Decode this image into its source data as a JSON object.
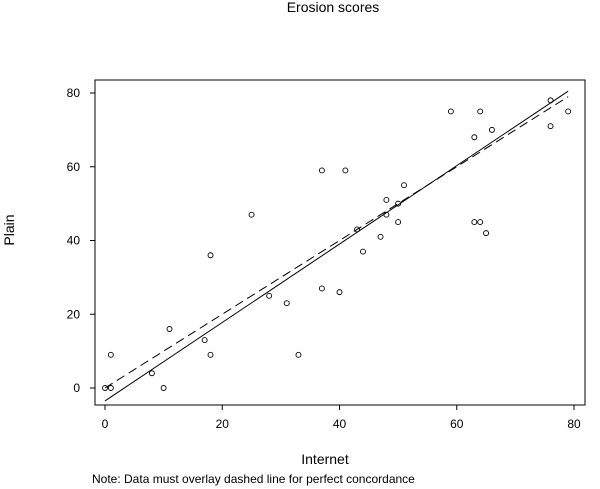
{
  "chart_data": {
    "type": "scatter",
    "title": "Erosion scores",
    "xlabel": "Internet",
    "ylabel": "Plain",
    "xlim": [
      -2,
      81
    ],
    "ylim": [
      -6,
      83
    ],
    "xticks": [
      0,
      20,
      40,
      60,
      80
    ],
    "yticks": [
      0,
      20,
      40,
      60,
      80
    ],
    "grid": false,
    "points": [
      {
        "x": 0,
        "y": 0
      },
      {
        "x": 1,
        "y": 0
      },
      {
        "x": 1,
        "y": 9
      },
      {
        "x": 8,
        "y": 4
      },
      {
        "x": 10,
        "y": 0
      },
      {
        "x": 11,
        "y": 16
      },
      {
        "x": 17,
        "y": 13
      },
      {
        "x": 18,
        "y": 9
      },
      {
        "x": 18,
        "y": 36
      },
      {
        "x": 25,
        "y": 47
      },
      {
        "x": 28,
        "y": 25
      },
      {
        "x": 31,
        "y": 23
      },
      {
        "x": 33,
        "y": 9
      },
      {
        "x": 37,
        "y": 27
      },
      {
        "x": 37,
        "y": 59
      },
      {
        "x": 40,
        "y": 26
      },
      {
        "x": 41,
        "y": 59
      },
      {
        "x": 43,
        "y": 43
      },
      {
        "x": 44,
        "y": 37
      },
      {
        "x": 47,
        "y": 41
      },
      {
        "x": 48,
        "y": 47
      },
      {
        "x": 48,
        "y": 51
      },
      {
        "x": 50,
        "y": 45
      },
      {
        "x": 50,
        "y": 50
      },
      {
        "x": 51,
        "y": 55
      },
      {
        "x": 59,
        "y": 75
      },
      {
        "x": 63,
        "y": 68
      },
      {
        "x": 63,
        "y": 45
      },
      {
        "x": 64,
        "y": 45
      },
      {
        "x": 64,
        "y": 75
      },
      {
        "x": 65,
        "y": 42
      },
      {
        "x": 66,
        "y": 70
      },
      {
        "x": 76,
        "y": 78
      },
      {
        "x": 76,
        "y": 71
      },
      {
        "x": 79,
        "y": 75
      }
    ],
    "lines": [
      {
        "style": "solid",
        "x": [
          0,
          79
        ],
        "y": [
          -3.5,
          80.5
        ]
      },
      {
        "style": "dashed",
        "x": [
          0,
          79
        ],
        "y": [
          0,
          79
        ]
      }
    ]
  },
  "note": "Note: Data must overlay dashed line for perfect concordance"
}
